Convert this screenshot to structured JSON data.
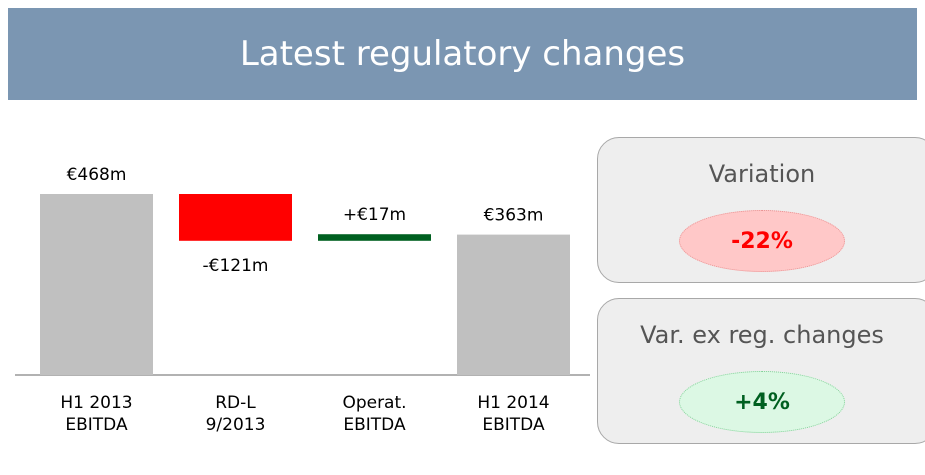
{
  "chart_data": {
    "type": "waterfall",
    "title": "Latest regulatory changes",
    "categories": [
      "H1 2013\nEBITDA",
      "RD-L\n9/2013",
      "Operat.\nEBITDA",
      "H1 2014\nEBITDA"
    ],
    "values": [
      468,
      -121,
      17,
      363
    ],
    "value_labels": [
      "€468m",
      "-€121m",
      "+€17m",
      "€363m"
    ],
    "colors": [
      "#c0c0c0",
      "#ff0000",
      "#006020",
      "#c0c0c0"
    ]
  },
  "panels": [
    {
      "title": "Variation",
      "value": "-22%"
    },
    {
      "title": "Var. ex reg. changes",
      "value": "+4%"
    }
  ]
}
